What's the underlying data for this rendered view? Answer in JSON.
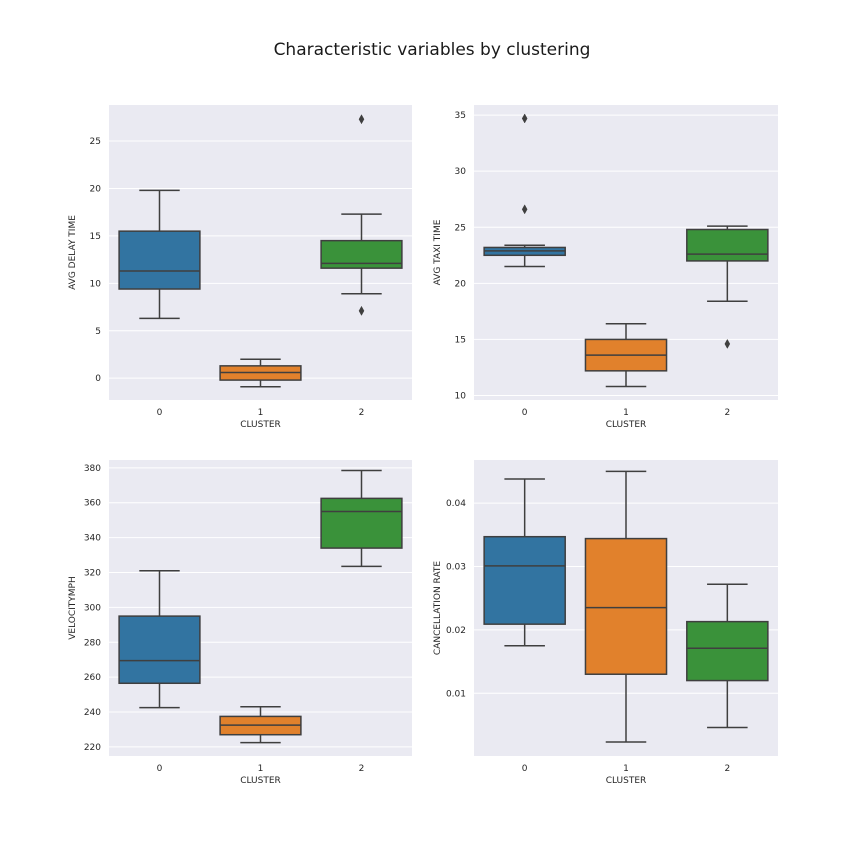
{
  "title": "Characteristic variables by clustering",
  "colors": [
    "#3274a1",
    "#e1812c",
    "#3a923a"
  ],
  "chart_data": [
    {
      "type": "box",
      "xlabel": "CLUSTER",
      "ylabel": "AVG DELAY TIME",
      "categories": [
        "0",
        "1",
        "2"
      ],
      "yticks": [
        0,
        5,
        10,
        15,
        20,
        25
      ],
      "ylim": [
        -2.3,
        28.8
      ],
      "grid": true,
      "boxes": [
        {
          "whislo": 6.3,
          "q1": 9.4,
          "med": 11.3,
          "q3": 15.5,
          "whishi": 19.8,
          "fliers": []
        },
        {
          "whislo": -0.9,
          "q1": -0.2,
          "med": 0.6,
          "q3": 1.3,
          "whishi": 2.0,
          "fliers": []
        },
        {
          "whislo": 8.9,
          "q1": 11.6,
          "med": 12.1,
          "q3": 14.5,
          "whishi": 17.3,
          "fliers": [
            7.1,
            27.3
          ]
        }
      ]
    },
    {
      "type": "box",
      "xlabel": "CLUSTER",
      "ylabel": "AVG TAXI TIME",
      "categories": [
        "0",
        "1",
        "2"
      ],
      "yticks": [
        10,
        15,
        20,
        25,
        30,
        35
      ],
      "ylim": [
        9.6,
        35.9
      ],
      "grid": true,
      "boxes": [
        {
          "whislo": 21.5,
          "q1": 22.5,
          "med": 22.9,
          "q3": 23.2,
          "whishi": 23.4,
          "fliers": [
            26.6,
            34.7
          ]
        },
        {
          "whislo": 10.8,
          "q1": 12.2,
          "med": 13.6,
          "q3": 15.0,
          "whishi": 16.4,
          "fliers": []
        },
        {
          "whislo": 18.4,
          "q1": 22.0,
          "med": 22.6,
          "q3": 24.8,
          "whishi": 25.1,
          "fliers": [
            14.6
          ]
        }
      ]
    },
    {
      "type": "box",
      "xlabel": "CLUSTER",
      "ylabel": "VELOCITYMPH",
      "categories": [
        "0",
        "1",
        "2"
      ],
      "yticks": [
        220,
        240,
        260,
        280,
        300,
        320,
        340,
        360,
        380
      ],
      "ylim": [
        214.8,
        384.5
      ],
      "grid": true,
      "boxes": [
        {
          "whislo": 242.5,
          "q1": 256.5,
          "med": 269.5,
          "q3": 295.0,
          "whishi": 321.0,
          "fliers": []
        },
        {
          "whislo": 222.5,
          "q1": 227.0,
          "med": 232.5,
          "q3": 237.5,
          "whishi": 243.0,
          "fliers": []
        },
        {
          "whislo": 323.5,
          "q1": 334.0,
          "med": 355.0,
          "q3": 362.5,
          "whishi": 378.5,
          "fliers": []
        }
      ]
    },
    {
      "type": "box",
      "xlabel": "CLUSTER",
      "ylabel": "CANCELLATION RATE",
      "categories": [
        "0",
        "1",
        "2"
      ],
      "yticks": [
        0.01,
        0.02,
        0.03,
        0.04
      ],
      "ytick_labels": [
        "0.01",
        "0.02",
        "0.03",
        "0.04"
      ],
      "ylim": [
        0.0001,
        0.0468
      ],
      "grid": true,
      "boxes": [
        {
          "whislo": 0.0175,
          "q1": 0.0209,
          "med": 0.0301,
          "q3": 0.0347,
          "whishi": 0.0438,
          "fliers": []
        },
        {
          "whislo": 0.0023,
          "q1": 0.013,
          "med": 0.0235,
          "q3": 0.0344,
          "whishi": 0.045,
          "fliers": []
        },
        {
          "whislo": 0.0046,
          "q1": 0.012,
          "med": 0.0171,
          "q3": 0.0213,
          "whishi": 0.0272,
          "fliers": []
        }
      ]
    }
  ]
}
